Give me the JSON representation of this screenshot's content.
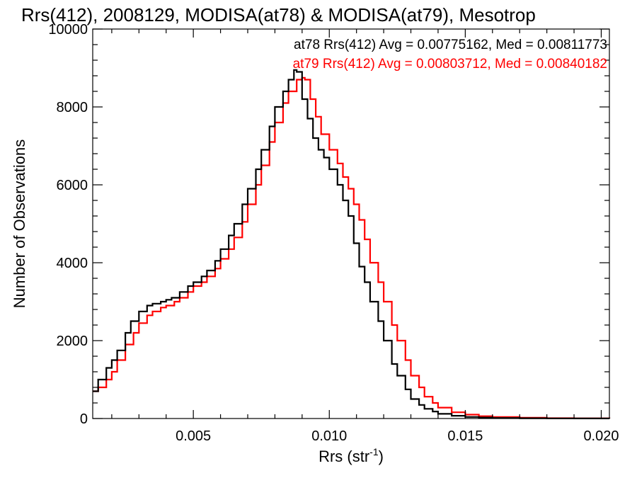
{
  "chart_data": {
    "type": "line",
    "title": "Rrs(412), 2008129, MODISA(at78) & MODISA(at79), Mesotrop",
    "xlabel": "Rrs (str",
    "xlabel_sup": "-1",
    "xlabel_end": ")",
    "ylabel": "Number of Observations",
    "xlim": [
      0.0013,
      0.0203
    ],
    "ylim": [
      0,
      10000
    ],
    "xticks": [
      0.005,
      0.01,
      0.015,
      0.02
    ],
    "xtick_labels": [
      "0.005",
      "0.010",
      "0.015",
      "0.020"
    ],
    "yticks": [
      0,
      2000,
      4000,
      6000,
      8000,
      10000
    ],
    "ytick_labels": [
      "0",
      "2000",
      "4000",
      "6000",
      "8000",
      "10000"
    ],
    "grid": false,
    "legend_position": "top-right",
    "series": [
      {
        "name": "at78 Rrs(412) Avg = 0.00775162, Med = 0.00811773",
        "color": "#000000",
        "points": [
          [
            0.0013,
            700
          ],
          [
            0.0015,
            1000
          ],
          [
            0.0018,
            1300
          ],
          [
            0.002,
            1500
          ],
          [
            0.0022,
            1750
          ],
          [
            0.0025,
            2200
          ],
          [
            0.0027,
            2500
          ],
          [
            0.003,
            2750
          ],
          [
            0.0033,
            2900
          ],
          [
            0.0035,
            2950
          ],
          [
            0.0038,
            3000
          ],
          [
            0.004,
            3050
          ],
          [
            0.0042,
            3100
          ],
          [
            0.0045,
            3250
          ],
          [
            0.0048,
            3400
          ],
          [
            0.005,
            3500
          ],
          [
            0.0053,
            3650
          ],
          [
            0.0055,
            3800
          ],
          [
            0.0058,
            4050
          ],
          [
            0.006,
            4350
          ],
          [
            0.0063,
            4700
          ],
          [
            0.0065,
            5000
          ],
          [
            0.0068,
            5500
          ],
          [
            0.007,
            5900
          ],
          [
            0.0073,
            6400
          ],
          [
            0.0075,
            6900
          ],
          [
            0.0078,
            7500
          ],
          [
            0.008,
            8000
          ],
          [
            0.0083,
            8400
          ],
          [
            0.0085,
            8700
          ],
          [
            0.0087,
            8950
          ],
          [
            0.0088,
            8900
          ],
          [
            0.009,
            8200
          ],
          [
            0.0092,
            7700
          ],
          [
            0.0094,
            7200
          ],
          [
            0.0096,
            6900
          ],
          [
            0.0098,
            6700
          ],
          [
            0.01,
            6400
          ],
          [
            0.0103,
            6000
          ],
          [
            0.0105,
            5600
          ],
          [
            0.0107,
            5200
          ],
          [
            0.0109,
            4500
          ],
          [
            0.0111,
            3900
          ],
          [
            0.0113,
            3500
          ],
          [
            0.0115,
            3000
          ],
          [
            0.0118,
            2500
          ],
          [
            0.012,
            2000
          ],
          [
            0.0123,
            1400
          ],
          [
            0.0125,
            1100
          ],
          [
            0.0128,
            750
          ],
          [
            0.013,
            500
          ],
          [
            0.0133,
            350
          ],
          [
            0.0135,
            250
          ],
          [
            0.0138,
            180
          ],
          [
            0.014,
            120
          ],
          [
            0.0145,
            70
          ],
          [
            0.015,
            40
          ],
          [
            0.0155,
            25
          ],
          [
            0.016,
            15
          ],
          [
            0.017,
            8
          ],
          [
            0.018,
            4
          ],
          [
            0.019,
            2
          ],
          [
            0.0203,
            0
          ]
        ]
      },
      {
        "name": "at79 Rrs(412) Avg = 0.00803712, Med = 0.00840182",
        "color": "#ff0000",
        "points": [
          [
            0.0013,
            700
          ],
          [
            0.0015,
            800
          ],
          [
            0.0018,
            1000
          ],
          [
            0.002,
            1200
          ],
          [
            0.0022,
            1500
          ],
          [
            0.0025,
            1900
          ],
          [
            0.0028,
            2200
          ],
          [
            0.003,
            2450
          ],
          [
            0.0033,
            2650
          ],
          [
            0.0035,
            2750
          ],
          [
            0.0038,
            2850
          ],
          [
            0.004,
            2900
          ],
          [
            0.0043,
            3000
          ],
          [
            0.0045,
            3100
          ],
          [
            0.0048,
            3250
          ],
          [
            0.005,
            3400
          ],
          [
            0.0053,
            3500
          ],
          [
            0.0055,
            3650
          ],
          [
            0.0058,
            3850
          ],
          [
            0.006,
            4100
          ],
          [
            0.0063,
            4350
          ],
          [
            0.0065,
            4650
          ],
          [
            0.0068,
            5050
          ],
          [
            0.007,
            5500
          ],
          [
            0.0073,
            6000
          ],
          [
            0.0075,
            6500
          ],
          [
            0.0078,
            7100
          ],
          [
            0.008,
            7600
          ],
          [
            0.0083,
            8100
          ],
          [
            0.0085,
            8400
          ],
          [
            0.0088,
            8700
          ],
          [
            0.009,
            8750
          ],
          [
            0.0091,
            8700
          ],
          [
            0.0093,
            8200
          ],
          [
            0.0095,
            7750
          ],
          [
            0.0097,
            7300
          ],
          [
            0.01,
            6900
          ],
          [
            0.0103,
            6550
          ],
          [
            0.0105,
            6200
          ],
          [
            0.0107,
            5900
          ],
          [
            0.0109,
            5500
          ],
          [
            0.0111,
            5100
          ],
          [
            0.0113,
            4600
          ],
          [
            0.0115,
            4000
          ],
          [
            0.0118,
            3500
          ],
          [
            0.012,
            3000
          ],
          [
            0.0123,
            2400
          ],
          [
            0.0125,
            2000
          ],
          [
            0.0128,
            1500
          ],
          [
            0.013,
            1100
          ],
          [
            0.0133,
            800
          ],
          [
            0.0135,
            560
          ],
          [
            0.0138,
            400
          ],
          [
            0.014,
            280
          ],
          [
            0.0145,
            160
          ],
          [
            0.015,
            100
          ],
          [
            0.0155,
            60
          ],
          [
            0.016,
            40
          ],
          [
            0.017,
            20
          ],
          [
            0.018,
            10
          ],
          [
            0.019,
            5
          ],
          [
            0.0203,
            0
          ]
        ]
      }
    ]
  }
}
